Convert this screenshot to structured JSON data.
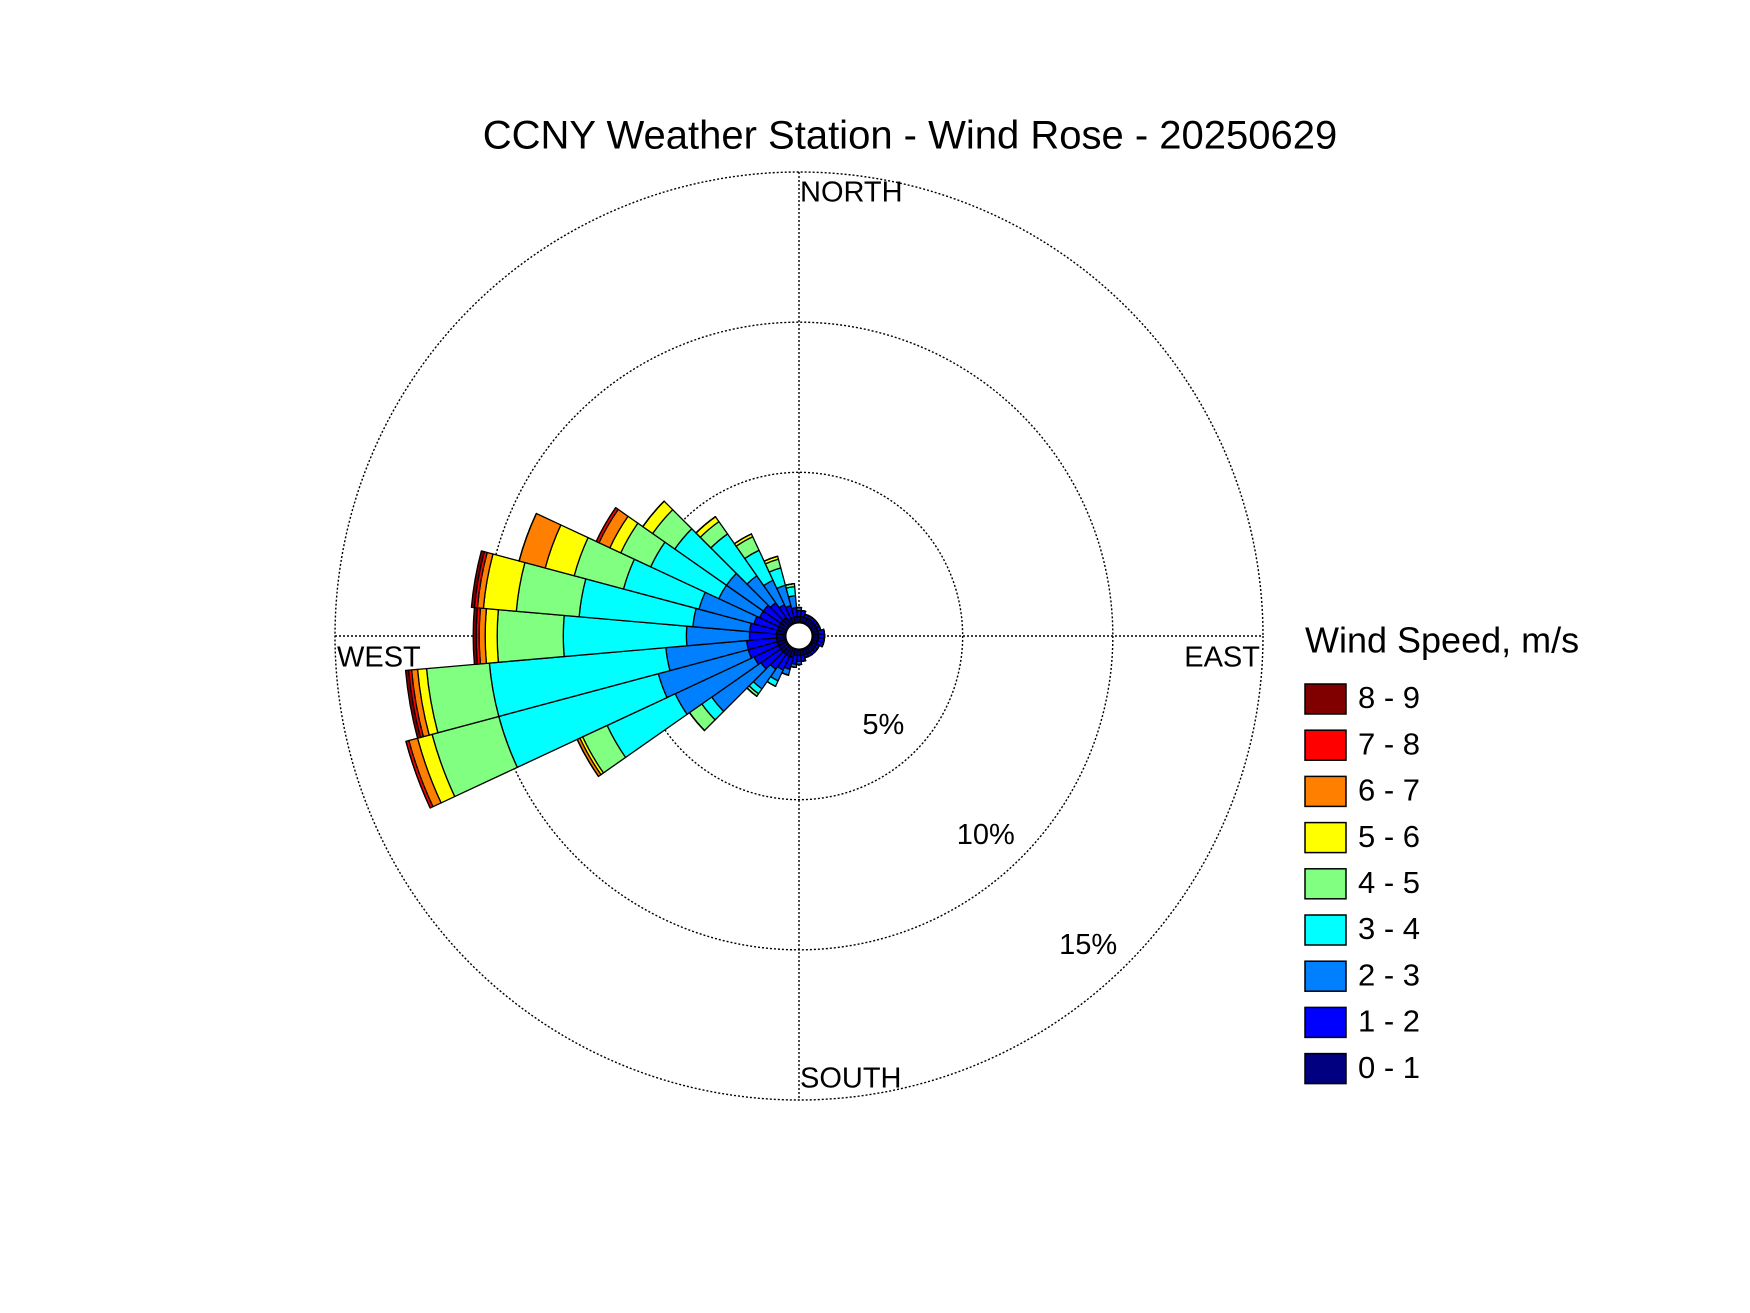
{
  "chart_data": {
    "type": "windrose",
    "title": "CCNY Weather Station - Wind Rose - 20250629",
    "direction_labels": [
      "NORTH",
      "EAST",
      "SOUTH",
      "WEST"
    ],
    "legend_title": "Wind Speed, m/s",
    "x": [
      0,
      10,
      20,
      30,
      40,
      50,
      60,
      70,
      80,
      90,
      100,
      110,
      120,
      130,
      140,
      150,
      160,
      170,
      180,
      190,
      200,
      210,
      220,
      230,
      240,
      250,
      260,
      270,
      280,
      290,
      300,
      310,
      320,
      330,
      340,
      350
    ],
    "rlim": [
      0,
      15
    ],
    "rticks": [
      {
        "value": 5,
        "label": "5%"
      },
      {
        "value": 10,
        "label": "10%"
      },
      {
        "value": 15,
        "label": "15%"
      }
    ],
    "grid": true,
    "legend_position": "right",
    "series": [
      {
        "name": "0 - 1",
        "color": "#000080",
        "values": [
          0.2,
          0.2,
          0.2,
          0.2,
          0.2,
          0.2,
          0.2,
          0.2,
          0.2,
          0.2,
          0.2,
          0.2,
          0.2,
          0.2,
          0.2,
          0.2,
          0.2,
          0.2,
          0.2,
          0.2,
          0.3,
          0.3,
          0.3,
          0.3,
          0.3,
          0.3,
          0.3,
          0.3,
          0.3,
          0.3,
          0.3,
          0.3,
          0.3,
          0.2,
          0.2,
          0.2
        ]
      },
      {
        "name": "1 - 2",
        "color": "#0000ff",
        "values": [
          0.2,
          0.2,
          0.1,
          0.1,
          0.1,
          0.1,
          0.1,
          0.1,
          0.2,
          0.2,
          0.2,
          0.2,
          0.1,
          0.1,
          0.1,
          0.1,
          0.1,
          0.2,
          0.2,
          0.3,
          0.4,
          0.5,
          0.6,
          0.8,
          0.9,
          1.0,
          1.0,
          0.9,
          0.9,
          0.8,
          0.7,
          0.7,
          0.6,
          0.5,
          0.4,
          0.3
        ]
      },
      {
        "name": "2 - 3",
        "color": "#0080ff",
        "values": [
          0.1,
          0,
          0,
          0,
          0,
          0,
          0,
          0,
          0,
          0,
          0,
          0,
          0,
          0,
          0,
          0,
          0,
          0,
          0.1,
          0.1,
          0.2,
          0.4,
          0.8,
          2.0,
          2.9,
          3.1,
          2.7,
          2.1,
          1.9,
          1.9,
          1.5,
          1.5,
          1.1,
          0.9,
          0.7,
          0.4
        ]
      },
      {
        "name": "3 - 4",
        "color": "#00ffff",
        "values": [
          0,
          0,
          0,
          0,
          0,
          0,
          0,
          0,
          0,
          0,
          0,
          0,
          0,
          0,
          0,
          0,
          0,
          0,
          0,
          0,
          0,
          0.2,
          0.2,
          0.4,
          2.5,
          5.5,
          5.9,
          4.1,
          3.8,
          2.6,
          2.5,
          2.1,
          1.7,
          1.1,
          0.6,
          0.3
        ]
      },
      {
        "name": "4 - 5",
        "color": "#80ff80",
        "values": [
          0,
          0,
          0,
          0,
          0,
          0,
          0,
          0,
          0,
          0,
          0,
          0,
          0,
          0,
          0,
          0,
          0,
          0,
          0,
          0,
          0,
          0,
          0.1,
          0.5,
          0.9,
          2.3,
          2.1,
          2.2,
          2.1,
          1.7,
          1.1,
          0.9,
          0.5,
          0.5,
          0.3,
          0.1
        ]
      },
      {
        "name": "5 - 6",
        "color": "#ffff00",
        "values": [
          0,
          0,
          0,
          0,
          0,
          0,
          0,
          0,
          0,
          0,
          0,
          0,
          0,
          0,
          0,
          0,
          0,
          0,
          0,
          0,
          0,
          0,
          0,
          0,
          0.1,
          0.5,
          0.3,
          0.4,
          1.1,
          1.0,
          0.4,
          0.4,
          0.2,
          0.1,
          0.1,
          0
        ]
      },
      {
        "name": "6 - 7",
        "color": "#ff8000",
        "values": [
          0,
          0,
          0,
          0,
          0,
          0,
          0,
          0,
          0,
          0,
          0,
          0,
          0,
          0,
          0,
          0,
          0,
          0,
          0,
          0,
          0,
          0,
          0,
          0,
          0.1,
          0.3,
          0.2,
          0.2,
          0.2,
          0.9,
          0.4,
          0,
          0,
          0,
          0,
          0
        ]
      },
      {
        "name": "7 - 8",
        "color": "#ff0000",
        "values": [
          0,
          0,
          0,
          0,
          0,
          0,
          0,
          0,
          0,
          0,
          0,
          0,
          0,
          0,
          0,
          0,
          0,
          0,
          0,
          0,
          0,
          0,
          0,
          0,
          0,
          0.1,
          0.1,
          0.1,
          0.1,
          0,
          0.1,
          0,
          0,
          0,
          0,
          0
        ]
      },
      {
        "name": "8 - 9",
        "color": "#800000",
        "values": [
          0,
          0,
          0,
          0,
          0,
          0,
          0,
          0,
          0,
          0,
          0,
          0,
          0,
          0,
          0,
          0,
          0,
          0,
          0,
          0,
          0,
          0,
          0,
          0,
          0,
          0,
          0.1,
          0.1,
          0.1,
          0,
          0,
          0,
          0,
          0,
          0,
          0
        ]
      }
    ]
  }
}
